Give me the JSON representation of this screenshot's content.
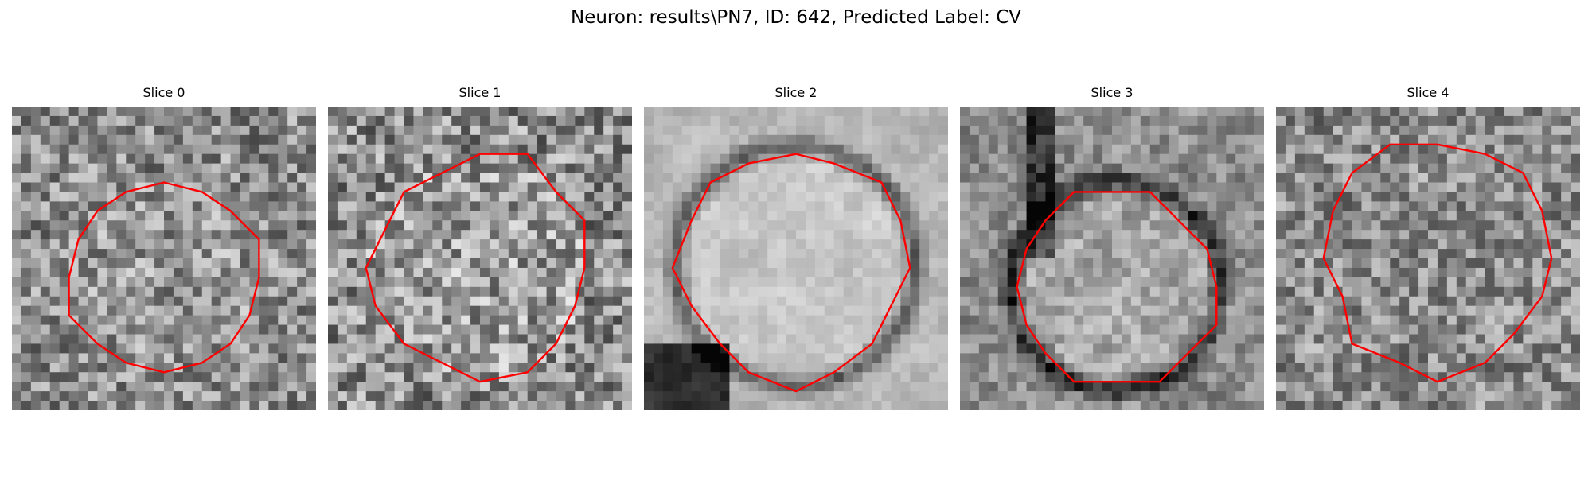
{
  "figure": {
    "title": "Neuron: results\\PN7, ID: 642, Predicted Label: CV"
  },
  "panels": [
    {
      "title": "Slice 0"
    },
    {
      "title": "Slice 1"
    },
    {
      "title": "Slice 2"
    },
    {
      "title": "Slice 3"
    },
    {
      "title": "Slice 4"
    }
  ],
  "style": {
    "contour_color": "#ff0000",
    "colormap": "grayscale"
  }
}
